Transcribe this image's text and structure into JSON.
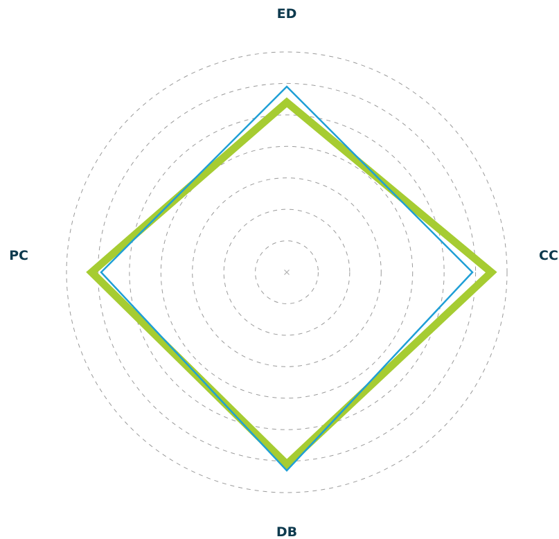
{
  "chart_data": {
    "type": "radar",
    "axes": [
      "ED",
      "CC",
      "DB",
      "PC"
    ],
    "range": [
      0,
      7
    ],
    "ring_count": 7,
    "grid": true,
    "series": [
      {
        "values": [
          5.9,
          5.9,
          6.3,
          5.9
        ],
        "color": "#1f9fd6",
        "style": "thin"
      },
      {
        "values": [
          5.4,
          6.5,
          6.1,
          6.2
        ],
        "color": "#a6cc32",
        "style": "thick"
      }
    ]
  }
}
